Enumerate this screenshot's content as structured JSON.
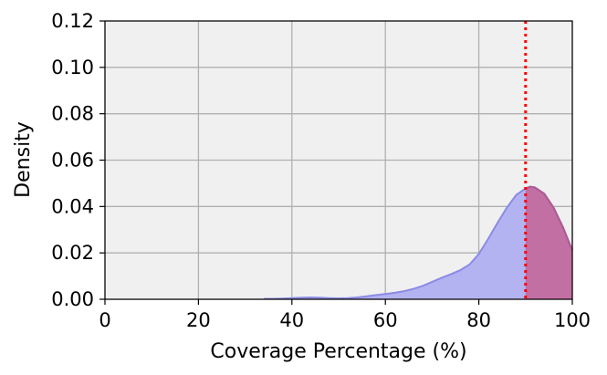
{
  "chart_data": {
    "type": "area",
    "xlabel": "Coverage Percentage (%)",
    "ylabel": "Density",
    "xlim": [
      0,
      100
    ],
    "ylim": [
      0,
      0.12
    ],
    "x_ticks": [
      "0",
      "20",
      "40",
      "60",
      "80",
      "100"
    ],
    "y_ticks": [
      "0.00",
      "0.02",
      "0.04",
      "0.06",
      "0.08",
      "0.10",
      "0.12"
    ],
    "grid": true,
    "threshold": 90,
    "threshold_color": "#ff0000",
    "background_color": "#f0f0f0",
    "fill_color": "#b3b3f2",
    "line_color": "#8b8be6",
    "highlight_fill_color": "#c26fa3",
    "highlight_line_color": "#b0598f",
    "series": [
      {
        "x": [
          34,
          36,
          38,
          40,
          42,
          44,
          46,
          48,
          50,
          52,
          54,
          56,
          58,
          60,
          62,
          64,
          66,
          68,
          70,
          72,
          74,
          76,
          78,
          80,
          82,
          84,
          86,
          88,
          90,
          91,
          92,
          94,
          96,
          98,
          100
        ],
        "values": [
          0.0002,
          0.0002,
          0.0003,
          0.0005,
          0.0007,
          0.0008,
          0.0007,
          0.0005,
          0.0004,
          0.0005,
          0.0008,
          0.0013,
          0.0018,
          0.0023,
          0.0028,
          0.0035,
          0.0045,
          0.0058,
          0.0075,
          0.0092,
          0.0108,
          0.0125,
          0.015,
          0.0195,
          0.026,
          0.033,
          0.0395,
          0.045,
          0.0478,
          0.0485,
          0.0482,
          0.0455,
          0.0395,
          0.031,
          0.021
        ]
      }
    ]
  }
}
